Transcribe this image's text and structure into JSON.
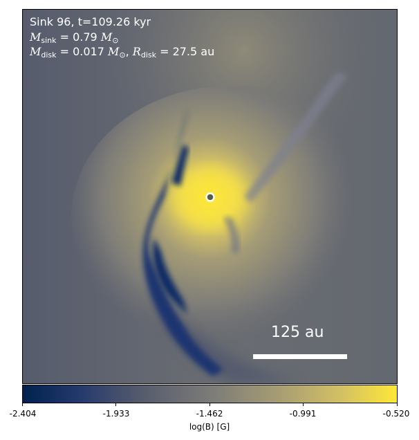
{
  "annotation": {
    "line1": "Sink 96, t=109.26 kyr",
    "msink_symbol": "M",
    "msink_sub": "sink",
    "msink_value": " = 0.79 ",
    "mdisk_symbol": "M",
    "mdisk_sub": "disk",
    "mdisk_value": " = 0.017 ",
    "rdisk_symbol": "R",
    "rdisk_sub": "disk",
    "rdisk_value": " = 27.5 au",
    "solar_mass": "M",
    "solar_sub": "⊙",
    "comma": ","
  },
  "scale_bar": {
    "label": "125 au"
  },
  "colorbar": {
    "ticks": [
      "-2.404",
      "-1.933",
      "-1.462",
      "-0.991",
      "-0.520"
    ],
    "label": "log(B) [G]",
    "colors": [
      "#00224e",
      "#575c6d",
      "#7b7b78",
      "#fee838"
    ]
  },
  "sink_marker": {
    "fill": "#5a5a4a",
    "stroke": "#ffffff"
  }
}
